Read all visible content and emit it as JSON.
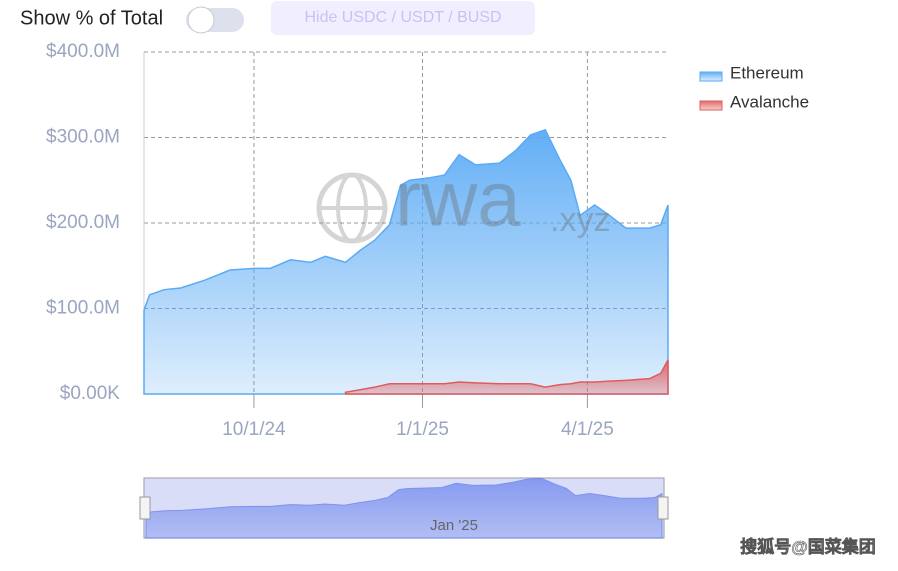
{
  "controls": {
    "toggle_label": "Show % of Total",
    "button_label": "Hide USDC / USDT / BUSD"
  },
  "watermark": {
    "logo": "rwa",
    "suffix": ".xyz",
    "source": "搜狐号@国菜集团"
  },
  "navigator": {
    "label": "Jan '25"
  },
  "chart_data": {
    "type": "area",
    "grid": true,
    "legend": "top-right",
    "x": [
      "8/2/24",
      "8/5/24",
      "8/13/24",
      "8/22/24",
      "9/4/24",
      "9/18/24",
      "10/1/24",
      "10/10/24",
      "10/21/24",
      "11/1/24",
      "11/9/24",
      "11/20/24",
      "11/28/24",
      "12/6/24",
      "12/14/24",
      "12/20/24",
      "12/25/24",
      "1/5/25",
      "1/13/25",
      "1/21/25",
      "1/30/25",
      "2/12/25",
      "2/21/25",
      "3/1/25",
      "3/9/25",
      "3/17/25",
      "3/23/25",
      "3/28/25",
      "4/5/25",
      "4/13/25",
      "4/22/25",
      "5/5/25",
      "5/11/25",
      "5/15/25"
    ],
    "xlim": [
      "8/2/24",
      "5/15/25"
    ],
    "xticks": [
      "10/1/24",
      "1/1/25",
      "4/1/25"
    ],
    "ylim": [
      0,
      400
    ],
    "yticks": [
      {
        "value": 0,
        "label": "$0.00K"
      },
      {
        "value": 100,
        "label": "$100.0M"
      },
      {
        "value": 200,
        "label": "$200.0M"
      },
      {
        "value": 300,
        "label": "$300.0M"
      },
      {
        "value": 400,
        "label": "$400.0M"
      }
    ],
    "series": [
      {
        "name": "Ethereum",
        "color": "#5aaaf5",
        "values": [
          98,
          116,
          122,
          124,
          133,
          145,
          147,
          147,
          157,
          154,
          161,
          154,
          168,
          180,
          198,
          244,
          250,
          253,
          256,
          280,
          268,
          270,
          285,
          303,
          309,
          274,
          250,
          209,
          221,
          209,
          194,
          194,
          198,
          221
        ]
      },
      {
        "name": "Avalanche",
        "color": "#e05c5c",
        "values": [
          null,
          null,
          null,
          null,
          null,
          null,
          null,
          null,
          null,
          null,
          null,
          2,
          5,
          8,
          12,
          12,
          12,
          12,
          12,
          14,
          13,
          12,
          12,
          12,
          8,
          11,
          12,
          14,
          14,
          15,
          16,
          18,
          24,
          40
        ]
      }
    ]
  }
}
